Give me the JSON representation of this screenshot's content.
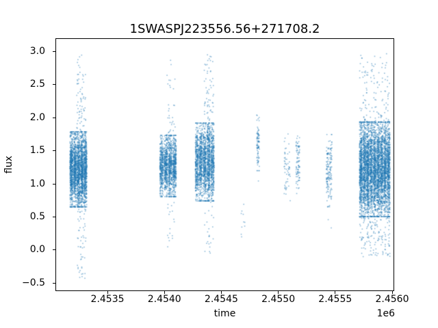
{
  "chart_data": {
    "type": "scatter",
    "title": "1SWASPJ223556.56+271708.2",
    "xlabel": "time",
    "ylabel": "flux",
    "x_offset_label": "1e6",
    "grid": false,
    "legend": null,
    "background_color": "#ffffff",
    "spine_color": "#000000",
    "point_color": "#1f77b4",
    "point_alpha": 0.5,
    "marker_size_px": 1.6,
    "seed": 7,
    "xlim": [
      2453049,
      2456012
    ],
    "ylim": [
      -0.61,
      3.19
    ],
    "xticks": {
      "values": [
        2453500,
        2454000,
        2454500,
        2455000,
        2455500,
        2456000
      ],
      "labels": [
        "2.4535",
        "2.4540",
        "2.4545",
        "2.4550",
        "2.4555",
        "2.4560"
      ]
    },
    "yticks": {
      "values": [
        -0.5,
        0.0,
        0.5,
        1.0,
        1.5,
        2.0,
        2.5,
        3.0
      ],
      "labels": [
        "−0.5",
        "0.0",
        "0.5",
        "1.0",
        "1.5",
        "2.0",
        "2.5",
        "3.0"
      ]
    },
    "clusters": [
      {
        "id": "c1",
        "t_start": 2453168,
        "t_end": 2453322,
        "n": 2600,
        "flux_mean": 1.22,
        "flux_sigma": 0.27,
        "flux_min": -0.45,
        "flux_max": 2.95,
        "stripes": 5,
        "tail_up_frac": 0.045,
        "tail_down_frac": 0.035,
        "tail_t_range": [
          2453230,
          2453310
        ]
      },
      {
        "id": "c2",
        "t_start": 2453956,
        "t_end": 2454108,
        "n": 1500,
        "flux_mean": 1.27,
        "flux_sigma": 0.22,
        "flux_min": 0.0,
        "flux_max": 2.88,
        "stripes": 4,
        "tail_up_frac": 0.03,
        "tail_down_frac": 0.022,
        "tail_t_range": [
          2454020,
          2454095
        ]
      },
      {
        "id": "c3",
        "t_start": 2454268,
        "t_end": 2454440,
        "n": 2000,
        "flux_mean": 1.33,
        "flux_sigma": 0.28,
        "flux_min": -0.06,
        "flux_max": 2.95,
        "stripes": 5,
        "tail_up_frac": 0.05,
        "tail_down_frac": 0.022,
        "tail_t_range": [
          2454350,
          2454432
        ]
      },
      {
        "id": "c4",
        "t_start": 2454668,
        "t_end": 2454706,
        "n": 10,
        "flux_mean": 0.58,
        "flux_sigma": 0.22,
        "flux_min": 0.2,
        "flux_max": 0.97,
        "stripes": 0,
        "tail_up_frac": 0,
        "tail_down_frac": 0
      },
      {
        "id": "c5",
        "t_start": 2454810,
        "t_end": 2454834,
        "n": 90,
        "flux_mean": 1.62,
        "flux_sigma": 0.2,
        "flux_min": 0.95,
        "flux_max": 2.05,
        "stripes": 0,
        "tail_up_frac": 0,
        "tail_down_frac": 0.012
      },
      {
        "id": "c6",
        "t_start": 2455048,
        "t_end": 2455108,
        "n": 55,
        "flux_mean": 1.25,
        "flux_sigma": 0.24,
        "flux_min": 0.73,
        "flux_max": 1.78,
        "stripes": 2,
        "tail_up_frac": 0,
        "tail_down_frac": 0
      },
      {
        "id": "c7",
        "t_start": 2455156,
        "t_end": 2455188,
        "n": 85,
        "flux_mean": 1.3,
        "flux_sigma": 0.25,
        "flux_min": 0.76,
        "flux_max": 1.9,
        "stripes": 0,
        "tail_up_frac": 0,
        "tail_down_frac": 0
      },
      {
        "id": "c8",
        "t_start": 2455420,
        "t_end": 2455474,
        "n": 160,
        "flux_mean": 1.2,
        "flux_sigma": 0.26,
        "flux_min": 0.28,
        "flux_max": 2.38,
        "stripes": 2,
        "tail_up_frac": 0.03,
        "tail_down_frac": 0.04
      },
      {
        "id": "c9",
        "t_start": 2455710,
        "t_end": 2455984,
        "n": 4800,
        "flux_mean": 1.22,
        "flux_sigma": 0.34,
        "flux_min": -0.1,
        "flux_max": 2.98,
        "stripes": 9,
        "tail_up_frac": 0.055,
        "tail_down_frac": 0.06
      }
    ]
  }
}
